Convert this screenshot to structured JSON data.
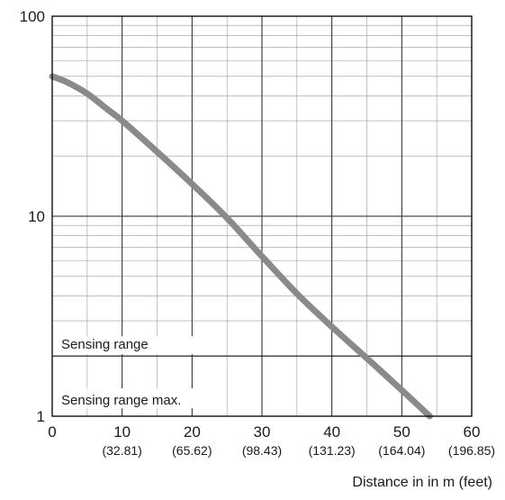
{
  "chart_data": {
    "type": "line",
    "title": "",
    "xlabel": "Distance in in m (feet)",
    "ylabel": "",
    "xlim": [
      0,
      60
    ],
    "ylim": [
      1,
      100
    ],
    "y_scale": "log",
    "grid": true,
    "x_ticks": [
      {
        "value": 0,
        "label": "0",
        "sublabel": ""
      },
      {
        "value": 10,
        "label": "10",
        "sublabel": "(32.81)"
      },
      {
        "value": 20,
        "label": "20",
        "sublabel": "(65.62)"
      },
      {
        "value": 30,
        "label": "30",
        "sublabel": "(98.43)"
      },
      {
        "value": 40,
        "label": "40",
        "sublabel": "(131.23)"
      },
      {
        "value": 50,
        "label": "50",
        "sublabel": "(164.04)"
      },
      {
        "value": 60,
        "label": "60",
        "sublabel": "(196.85)"
      }
    ],
    "y_ticks": [
      {
        "value": 1,
        "label": "1"
      },
      {
        "value": 10,
        "label": "10"
      },
      {
        "value": 100,
        "label": "100"
      }
    ],
    "reference_lines": [
      {
        "y": 2,
        "label_above": "Sensing range",
        "label_below": "Sensing range max."
      }
    ],
    "series": [
      {
        "color": "#8a8a8a",
        "x": [
          0,
          2,
          5,
          8,
          10,
          15,
          20,
          25,
          30,
          35,
          40,
          45,
          50,
          54
        ],
        "y": [
          50,
          47,
          41,
          34,
          30,
          21,
          14.5,
          9.8,
          6.3,
          4.1,
          2.8,
          1.95,
          1.35,
          1.0
        ]
      }
    ]
  }
}
